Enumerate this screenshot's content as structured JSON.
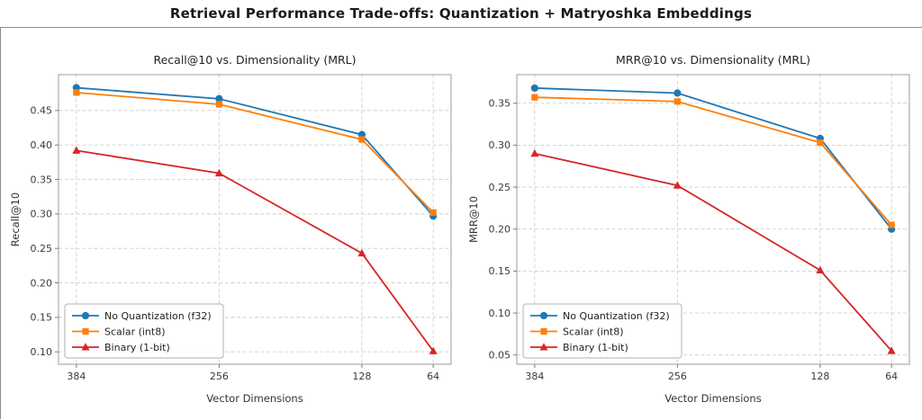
{
  "page_title": "Retrieval Performance Trade-offs: Quantization + Matryoshka Embeddings",
  "colors": {
    "blue": "#1f77b4",
    "orange": "#ff7f0e",
    "red": "#d62728"
  },
  "chart_data": [
    {
      "type": "line",
      "title": "Recall@10 vs. Dimensionality (MRL)",
      "xlabel": "Vector Dimensions",
      "ylabel": "Recall@10",
      "categories": [
        "384",
        "256",
        "128",
        "64"
      ],
      "x_axis_reversed": true,
      "yticks": [
        0.1,
        0.15,
        0.2,
        0.25,
        0.3,
        0.35,
        0.4,
        0.45
      ],
      "ylim": [
        0.082,
        0.502
      ],
      "grid": true,
      "legend_position": "lower left",
      "series": [
        {
          "name": "No Quantization (f32)",
          "marker": "circle",
          "color": "#1f77b4",
          "values": [
            0.483,
            0.467,
            0.415,
            0.297
          ]
        },
        {
          "name": "Scalar (int8)",
          "marker": "square",
          "color": "#ff7f0e",
          "values": [
            0.476,
            0.459,
            0.408,
            0.302
          ]
        },
        {
          "name": "Binary (1-bit)",
          "marker": "triangle",
          "color": "#d62728",
          "values": [
            0.392,
            0.359,
            0.243,
            0.101
          ]
        }
      ]
    },
    {
      "type": "line",
      "title": "MRR@10 vs. Dimensionality (MRL)",
      "xlabel": "Vector Dimensions",
      "ylabel": "MRR@10",
      "categories": [
        "384",
        "256",
        "128",
        "64"
      ],
      "x_axis_reversed": true,
      "yticks": [
        0.05,
        0.1,
        0.15,
        0.2,
        0.25,
        0.3,
        0.35
      ],
      "ylim": [
        0.039,
        0.384
      ],
      "grid": true,
      "legend_position": "lower left",
      "series": [
        {
          "name": "No Quantization (f32)",
          "marker": "circle",
          "color": "#1f77b4",
          "values": [
            0.368,
            0.362,
            0.308,
            0.2
          ]
        },
        {
          "name": "Scalar (int8)",
          "marker": "square",
          "color": "#ff7f0e",
          "values": [
            0.357,
            0.352,
            0.303,
            0.205
          ]
        },
        {
          "name": "Binary (1-bit)",
          "marker": "triangle",
          "color": "#d62728",
          "values": [
            0.29,
            0.252,
            0.151,
            0.055
          ]
        }
      ]
    }
  ]
}
